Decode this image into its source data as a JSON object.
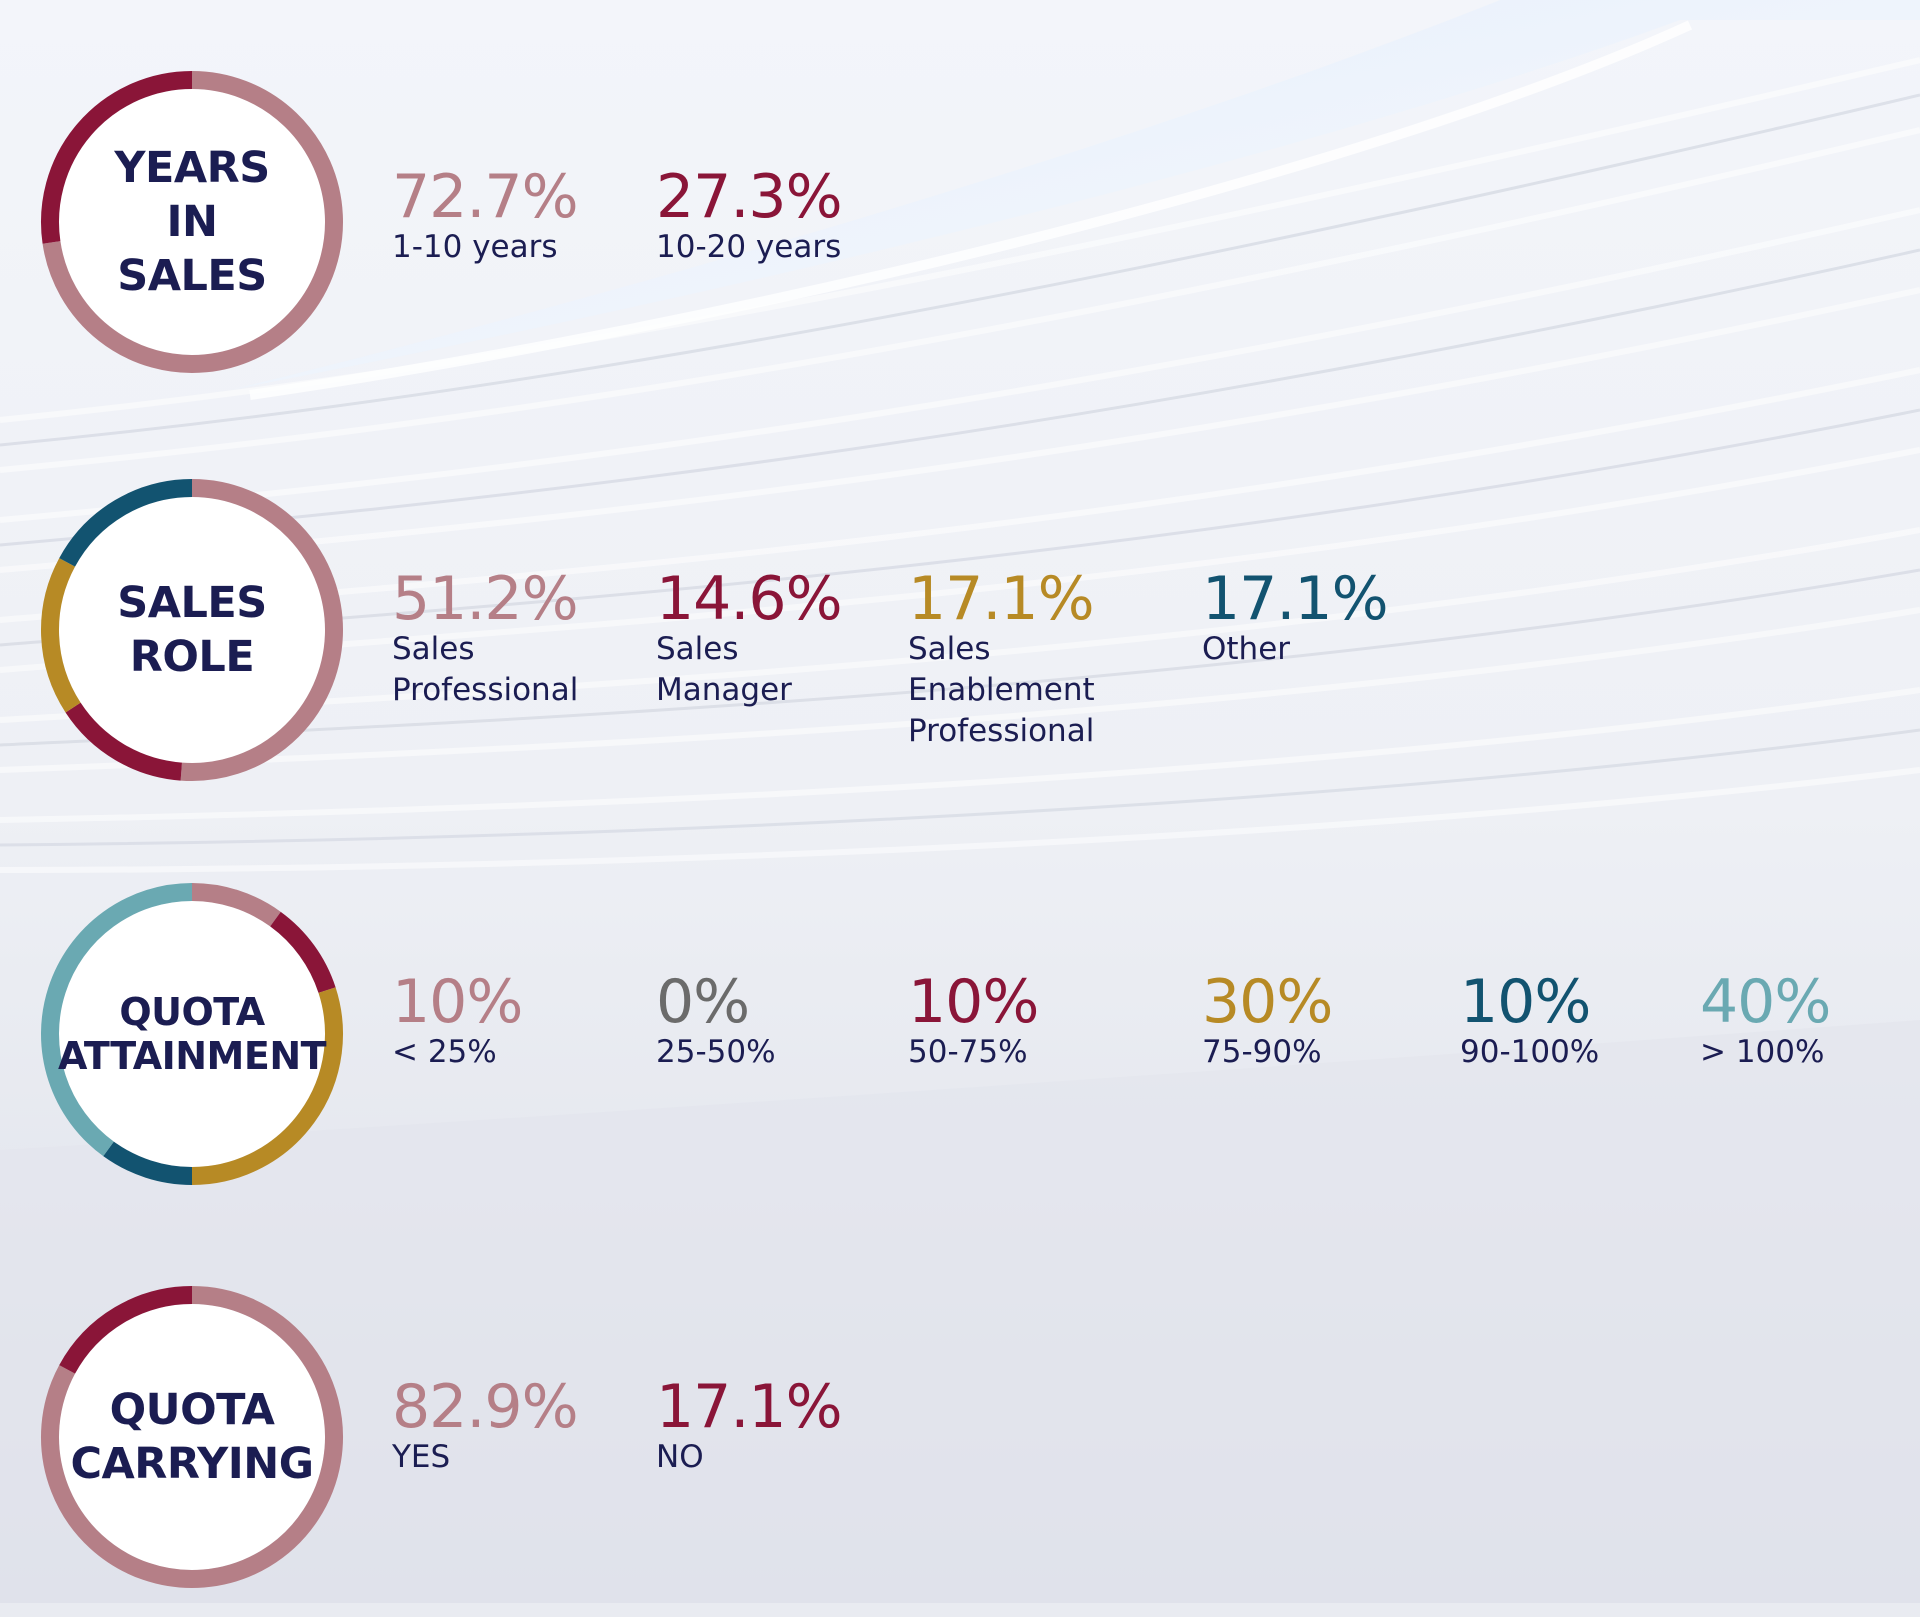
{
  "colors": {
    "text": "#1b1d52",
    "mauve": "#b57f87",
    "crimson": "#8a1538",
    "gold": "#b78a25",
    "teal": "#125370",
    "light_teal": "#6aa9b2",
    "gray": "#6b6b6b"
  },
  "chart_data": [
    {
      "type": "pie",
      "title": "YEARS\nIN SALES",
      "categories": [
        "1-10 years",
        "10-20 years"
      ],
      "values": [
        72.7,
        27.3
      ],
      "value_labels": [
        "72.7%",
        "27.3%"
      ],
      "colors": [
        "#b57f87",
        "#8a1538"
      ]
    },
    {
      "type": "pie",
      "title": "SALES\nROLE",
      "categories": [
        "Sales\nProfessional",
        "Sales\nManager",
        "Sales\nEnablement\nProfessional",
        "Other"
      ],
      "values": [
        51.2,
        14.6,
        17.1,
        17.1
      ],
      "value_labels": [
        "51.2%",
        "14.6%",
        "17.1%",
        "17.1%"
      ],
      "colors": [
        "#b57f87",
        "#8a1538",
        "#b78a25",
        "#125370"
      ]
    },
    {
      "type": "pie",
      "title": "QUOTA\nATTAINMENT",
      "categories": [
        "< 25%",
        "25-50%",
        "50-75%",
        "75-90%",
        "90-100%",
        "> 100%"
      ],
      "values": [
        10,
        0,
        10,
        30,
        10,
        40
      ],
      "value_labels": [
        "10%",
        "0%",
        "10%",
        "30%",
        "10%",
        "40%"
      ],
      "colors": [
        "#b57f87",
        "#6b6b6b",
        "#8a1538",
        "#b78a25",
        "#125370",
        "#6aa9b2"
      ]
    },
    {
      "type": "pie",
      "title": "QUOTA\nCARRYING",
      "categories": [
        "YES",
        "NO"
      ],
      "values": [
        82.9,
        17.1
      ],
      "value_labels": [
        "82.9%",
        "17.1%"
      ],
      "colors": [
        "#b57f87",
        "#8a1538"
      ]
    }
  ]
}
